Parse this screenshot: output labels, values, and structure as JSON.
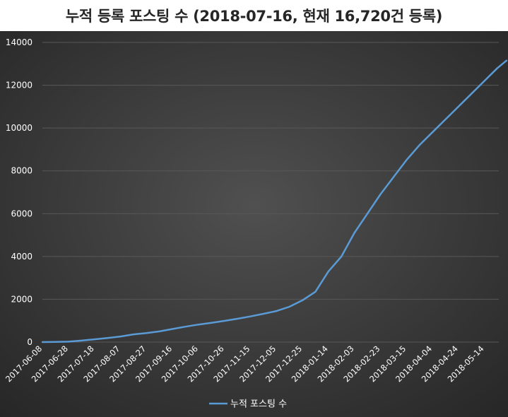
{
  "chart_data": {
    "type": "line",
    "title": "누적 등록 포스팅 수 (2018-07-16, 현재 16,720건 등록)",
    "ylim": [
      0,
      14000
    ],
    "yticks": [
      0,
      2000,
      4000,
      6000,
      8000,
      10000,
      12000,
      14000
    ],
    "categories": [
      "2017-06-08",
      "2017-06-28",
      "2017-07-18",
      "2017-08-07",
      "2017-08-27",
      "2017-09-16",
      "2017-10-06",
      "2017-10-26",
      "2017-11-15",
      "2017-12-05",
      "2017-12-25",
      "2018-01-14",
      "2018-02-03",
      "2018-02-23",
      "2018-03-15",
      "2018-04-04",
      "2018-04-24",
      "2018-05-14"
    ],
    "x_range": [
      "2017-06-08",
      "2018-06-01"
    ],
    "grid": true,
    "legend": "bottom",
    "colors": {
      "line": "#5b9bd5",
      "background": "#3c3c3c",
      "grid": "#585858",
      "text": "#ffffff"
    },
    "series": [
      {
        "name": "누적 포스팅 수",
        "points": [
          [
            "2017-06-08",
            0
          ],
          [
            "2017-06-18",
            10
          ],
          [
            "2017-06-28",
            20
          ],
          [
            "2017-07-08",
            70
          ],
          [
            "2017-07-18",
            130
          ],
          [
            "2017-07-28",
            190
          ],
          [
            "2017-08-07",
            260
          ],
          [
            "2017-08-17",
            360
          ],
          [
            "2017-08-27",
            420
          ],
          [
            "2017-09-06",
            500
          ],
          [
            "2017-09-16",
            610
          ],
          [
            "2017-09-26",
            720
          ],
          [
            "2017-10-06",
            820
          ],
          [
            "2017-10-16",
            900
          ],
          [
            "2017-10-26",
            990
          ],
          [
            "2017-11-05",
            1090
          ],
          [
            "2017-11-15",
            1200
          ],
          [
            "2017-11-25",
            1320
          ],
          [
            "2017-12-05",
            1450
          ],
          [
            "2017-12-15",
            1650
          ],
          [
            "2017-12-25",
            1950
          ],
          [
            "2018-01-04",
            2350
          ],
          [
            "2018-01-14",
            3300
          ],
          [
            "2018-01-24",
            4000
          ],
          [
            "2018-02-03",
            5100
          ],
          [
            "2018-02-13",
            6000
          ],
          [
            "2018-02-23",
            6900
          ],
          [
            "2018-03-05",
            7700
          ],
          [
            "2018-03-15",
            8500
          ],
          [
            "2018-03-25",
            9200
          ],
          [
            "2018-04-04",
            9800
          ],
          [
            "2018-04-14",
            10400
          ],
          [
            "2018-04-24",
            11000
          ],
          [
            "2018-05-04",
            11600
          ],
          [
            "2018-05-14",
            12200
          ],
          [
            "2018-05-24",
            12800
          ],
          [
            "2018-05-31",
            13150
          ]
        ]
      }
    ]
  }
}
